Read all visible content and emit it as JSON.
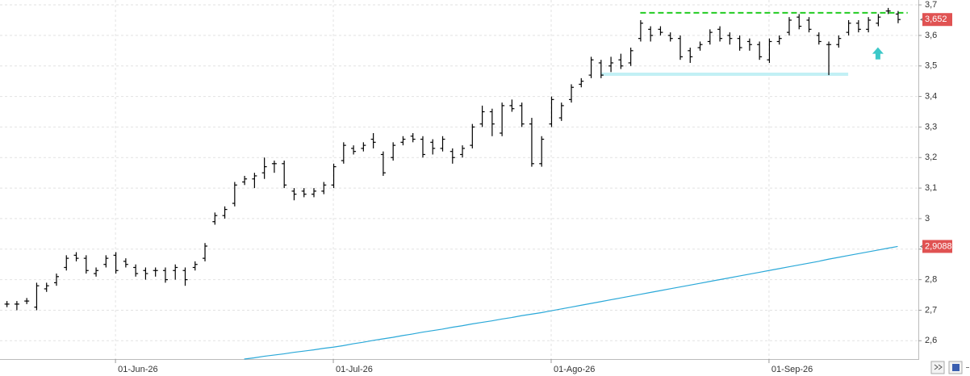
{
  "chart_data": {
    "type": "ohlc",
    "categories": [
      null,
      null,
      null,
      null,
      null,
      null,
      null,
      null,
      null,
      null,
      null,
      "01-Jun-26",
      null,
      null,
      null,
      null,
      null,
      null,
      null,
      null,
      null,
      null,
      null,
      null,
      null,
      null,
      null,
      null,
      null,
      null,
      null,
      null,
      null,
      "01-Jul-26",
      null,
      null,
      null,
      null,
      null,
      null,
      null,
      null,
      null,
      null,
      null,
      null,
      null,
      null,
      null,
      null,
      null,
      null,
      null,
      null,
      null,
      "01-Ago-26",
      null,
      null,
      null,
      null,
      null,
      null,
      null,
      null,
      null,
      null,
      null,
      null,
      null,
      null,
      null,
      null,
      null,
      null,
      null,
      null,
      null,
      "01-Sep-26",
      null,
      null,
      null,
      null,
      null,
      null,
      null,
      null,
      null,
      null,
      null,
      null,
      null
    ],
    "series": [
      {
        "type": "ohlc",
        "color": "#000000",
        "open": [
          2.72,
          2.72,
          2.73,
          2.71,
          2.77,
          2.79,
          2.84,
          2.88,
          2.87,
          2.82,
          2.85,
          2.88,
          2.86,
          2.84,
          2.83,
          2.83,
          2.83,
          2.83,
          2.83,
          2.84,
          2.87,
          2.99,
          3.01,
          3.05,
          3.12,
          3.13,
          3.15,
          3.18,
          3.18,
          3.09,
          3.09,
          3.08,
          3.09,
          3.11,
          3.19,
          3.23,
          3.23,
          3.26,
          3.21,
          3.2,
          3.25,
          3.27,
          3.26,
          3.25,
          3.23,
          3.22,
          3.21,
          3.24,
          3.31,
          3.35,
          3.28,
          3.37,
          3.37,
          3.31,
          3.18,
          3.31,
          3.33,
          3.39,
          3.44,
          3.47,
          3.51,
          3.5,
          3.52,
          3.51,
          3.59,
          3.62,
          3.62,
          3.6,
          3.59,
          3.55,
          3.56,
          3.58,
          3.62,
          3.6,
          3.59,
          3.58,
          3.57,
          3.52,
          3.58,
          3.61,
          3.66,
          3.65,
          3.6,
          3.57,
          3.57,
          3.61,
          3.64,
          3.62,
          3.64,
          3.68,
          3.67
        ],
        "high": [
          2.73,
          2.73,
          2.74,
          2.79,
          2.79,
          2.82,
          2.88,
          2.89,
          2.88,
          2.84,
          2.88,
          2.89,
          2.87,
          2.85,
          2.84,
          2.84,
          2.84,
          2.85,
          2.84,
          2.86,
          2.92,
          3.02,
          3.04,
          3.12,
          3.14,
          3.15,
          3.2,
          3.19,
          3.19,
          3.1,
          3.1,
          3.1,
          3.12,
          3.18,
          3.25,
          3.24,
          3.25,
          3.28,
          3.22,
          3.25,
          3.27,
          3.28,
          3.27,
          3.26,
          3.27,
          3.23,
          3.24,
          3.31,
          3.37,
          3.36,
          3.38,
          3.39,
          3.38,
          3.33,
          3.27,
          3.4,
          3.38,
          3.44,
          3.46,
          3.53,
          3.52,
          3.53,
          3.54,
          3.56,
          3.65,
          3.63,
          3.63,
          3.61,
          3.6,
          3.56,
          3.58,
          3.62,
          3.63,
          3.61,
          3.6,
          3.59,
          3.58,
          3.59,
          3.6,
          3.66,
          3.67,
          3.66,
          3.61,
          3.58,
          3.6,
          3.65,
          3.65,
          3.66,
          3.67,
          3.69,
          3.68
        ],
        "low": [
          2.71,
          2.7,
          2.72,
          2.7,
          2.76,
          2.78,
          2.83,
          2.86,
          2.82,
          2.81,
          2.84,
          2.82,
          2.84,
          2.81,
          2.8,
          2.81,
          2.79,
          2.8,
          2.78,
          2.83,
          2.86,
          2.98,
          3.0,
          3.04,
          3.11,
          3.1,
          3.13,
          3.15,
          3.1,
          3.06,
          3.07,
          3.07,
          3.08,
          3.1,
          3.18,
          3.21,
          3.22,
          3.23,
          3.14,
          3.19,
          3.24,
          3.25,
          3.2,
          3.21,
          3.22,
          3.18,
          3.2,
          3.23,
          3.3,
          3.27,
          3.27,
          3.35,
          3.3,
          3.17,
          3.17,
          3.3,
          3.32,
          3.38,
          3.43,
          3.46,
          3.46,
          3.48,
          3.49,
          3.5,
          3.58,
          3.58,
          3.6,
          3.58,
          3.52,
          3.51,
          3.55,
          3.57,
          3.58,
          3.57,
          3.55,
          3.55,
          3.52,
          3.51,
          3.57,
          3.6,
          3.62,
          3.61,
          3.57,
          3.47,
          3.56,
          3.6,
          3.61,
          3.61,
          3.63,
          3.67,
          3.64
        ],
        "close": [
          2.72,
          2.72,
          2.73,
          2.78,
          2.78,
          2.81,
          2.87,
          2.87,
          2.83,
          2.83,
          2.87,
          2.83,
          2.85,
          2.82,
          2.82,
          2.83,
          2.8,
          2.84,
          2.8,
          2.85,
          2.91,
          3.01,
          3.03,
          3.11,
          3.13,
          3.14,
          3.17,
          3.18,
          3.11,
          3.08,
          3.08,
          3.09,
          3.11,
          3.17,
          3.24,
          3.22,
          3.24,
          3.25,
          3.15,
          3.24,
          3.26,
          3.26,
          3.21,
          3.23,
          3.26,
          3.2,
          3.23,
          3.3,
          3.35,
          3.31,
          3.37,
          3.36,
          3.31,
          3.18,
          3.26,
          3.39,
          3.37,
          3.43,
          3.45,
          3.52,
          3.47,
          3.51,
          3.5,
          3.55,
          3.64,
          3.6,
          3.61,
          3.59,
          3.53,
          3.53,
          3.57,
          3.61,
          3.59,
          3.59,
          3.56,
          3.57,
          3.53,
          3.58,
          3.59,
          3.65,
          3.63,
          3.62,
          3.58,
          3.57,
          3.59,
          3.64,
          3.62,
          3.65,
          3.66,
          3.68,
          3.652
        ]
      },
      {
        "type": "line",
        "color": "#2aa8d8",
        "values": [
          null,
          null,
          null,
          null,
          null,
          null,
          null,
          null,
          null,
          null,
          null,
          null,
          null,
          null,
          null,
          null,
          null,
          null,
          null,
          null,
          null,
          null,
          null,
          null,
          2.54,
          2.544,
          2.549,
          2.553,
          2.557,
          2.562,
          2.566,
          2.57,
          2.575,
          2.579,
          2.584,
          2.59,
          2.595,
          2.601,
          2.606,
          2.611,
          2.617,
          2.622,
          2.628,
          2.633,
          2.638,
          2.644,
          2.649,
          2.655,
          2.66,
          2.665,
          2.671,
          2.676,
          2.682,
          2.687,
          2.692,
          2.698,
          2.704,
          2.71,
          2.716,
          2.722,
          2.728,
          2.734,
          2.74,
          2.746,
          2.752,
          2.758,
          2.764,
          2.77,
          2.776,
          2.782,
          2.788,
          2.794,
          2.8,
          2.806,
          2.812,
          2.818,
          2.824,
          2.83,
          2.836,
          2.842,
          2.848,
          2.854,
          2.86,
          2.867,
          2.873,
          2.879,
          2.885,
          2.891,
          2.897,
          2.903,
          2.9088
        ]
      }
    ],
    "ylim": [
      2.54,
      3.716
    ],
    "yticks": [
      {
        "value": 2.6,
        "label": "2,6"
      },
      {
        "value": 2.7,
        "label": "2,7"
      },
      {
        "value": 2.8,
        "label": "2,8"
      },
      {
        "value": 2.9,
        "label": "2,9"
      },
      3,
      {
        "value": 3.1,
        "label": "3,1"
      },
      {
        "value": 3.2,
        "label": "3,2"
      },
      {
        "value": 3.3,
        "label": "3,3"
      },
      {
        "value": 3.4,
        "label": "3,4"
      },
      {
        "value": 3.5,
        "label": "3,5"
      },
      {
        "value": 3.6,
        "label": "3,6"
      },
      {
        "value": 3.7,
        "label": "3,7"
      }
    ],
    "grid": true,
    "price_tags": [
      {
        "value": 3.652,
        "label": "3,652",
        "color": "#e05252"
      },
      {
        "value": 2.9088,
        "label": "2,9088",
        "color": "#e05252"
      }
    ],
    "lines": [
      {
        "y": 3.674,
        "from": 64,
        "to": 91,
        "color": "#22cc22",
        "style": "dashed"
      },
      {
        "y": 3.473,
        "from": 60,
        "to": 85,
        "color": "#c2f0f5",
        "style": "solid"
      }
    ],
    "arrow": {
      "x": 88,
      "y": 3.54,
      "color": "#3cc8c8"
    }
  }
}
